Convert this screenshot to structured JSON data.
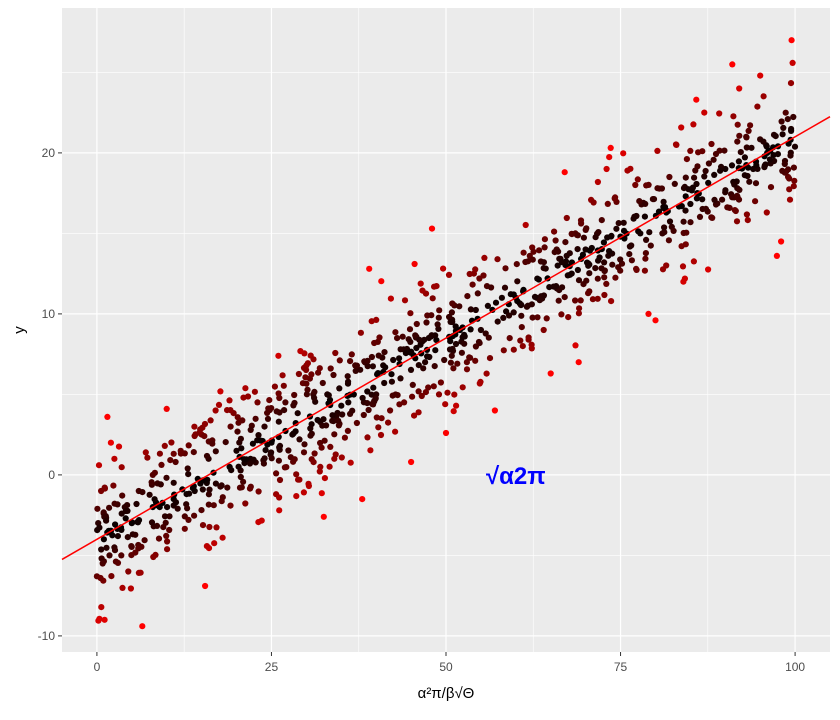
{
  "chart_data": {
    "type": "scatter",
    "title": "",
    "xlabel": "α²π/β√Θ",
    "ylabel": "y",
    "xlim": [
      -5,
      105
    ],
    "ylim": [
      -11,
      29
    ],
    "x_ticks": [
      0,
      25,
      50,
      75,
      100
    ],
    "x_tick_labels": [
      "0",
      "25",
      "50",
      "75",
      "100"
    ],
    "y_ticks": [
      -10,
      0,
      10,
      20
    ],
    "y_tick_labels": [
      "-10",
      "0",
      "10",
      "20"
    ],
    "grid": true,
    "background_color": "#ebebeb",
    "grid_color": "#ffffff",
    "point_color_scale": [
      "#000000",
      "#ff0000"
    ],
    "point_color_meaning": "absolute residual from fitted line (darker = closer)",
    "fit_line": {
      "intercept": -4,
      "slope": 0.25,
      "color": "#ff0000"
    },
    "annotation": {
      "text": "√α2π",
      "x": 60,
      "y": 0,
      "color": "#0000ff"
    },
    "n_points": 1000,
    "points": [
      [
        0,
        -6.3
      ],
      [
        0.3,
        0.6
      ],
      [
        0.6,
        -1
      ],
      [
        1.1,
        -9
      ],
      [
        1.5,
        3.6
      ],
      [
        2,
        2
      ],
      [
        2.5,
        1
      ],
      [
        1,
        -4
      ],
      [
        1.8,
        -5
      ],
      [
        2.5,
        -4.5
      ],
      [
        3,
        -3.8
      ],
      [
        3.5,
        -5
      ],
      [
        4,
        -2
      ],
      [
        4.5,
        -6
      ],
      [
        5,
        -3
      ],
      [
        6,
        -1
      ],
      [
        6.5,
        -9.4
      ],
      [
        7,
        1.4
      ],
      [
        8,
        0
      ],
      [
        8,
        -2
      ],
      [
        9,
        -2
      ],
      [
        10,
        4.1
      ],
      [
        11,
        -1.5
      ],
      [
        12,
        1.5
      ],
      [
        13,
        0.4
      ],
      [
        14,
        -1
      ],
      [
        15,
        2.5
      ],
      [
        15.5,
        -6.9
      ],
      [
        16,
        1
      ],
      [
        17,
        4
      ],
      [
        18,
        -3.9
      ],
      [
        19,
        0.5
      ],
      [
        20,
        1.5
      ],
      [
        21,
        4.8
      ],
      [
        22,
        1
      ],
      [
        23,
        4.5
      ],
      [
        24,
        3
      ],
      [
        25,
        2
      ],
      [
        26,
        7.4
      ],
      [
        27,
        4.5
      ],
      [
        28,
        2.5
      ],
      [
        29,
        -0.3
      ],
      [
        30,
        6.8
      ],
      [
        31,
        5
      ],
      [
        32,
        0.5
      ],
      [
        32.5,
        -2.6
      ],
      [
        33,
        5
      ],
      [
        34,
        1
      ],
      [
        35,
        4.3
      ],
      [
        36,
        4.5
      ],
      [
        37,
        6.8
      ],
      [
        38,
        -1.5
      ],
      [
        39,
        12.8
      ],
      [
        40,
        5
      ],
      [
        41,
        6.8
      ],
      [
        42,
        4
      ],
      [
        43,
        8.5
      ],
      [
        44,
        4.5
      ],
      [
        45,
        0.8
      ],
      [
        45.5,
        13.1
      ],
      [
        47,
        7
      ],
      [
        48,
        15.3
      ],
      [
        49,
        5
      ],
      [
        50,
        2.6
      ],
      [
        51,
        7.7
      ],
      [
        52,
        9
      ],
      [
        53,
        7
      ],
      [
        54,
        12.5
      ],
      [
        55,
        9
      ],
      [
        56,
        10.5
      ],
      [
        57,
        4
      ],
      [
        58,
        11
      ],
      [
        59,
        10.6
      ],
      [
        60,
        11
      ],
      [
        61,
        8
      ],
      [
        62,
        13.6
      ],
      [
        63,
        11
      ],
      [
        64,
        9
      ],
      [
        65,
        6.3
      ],
      [
        66,
        13
      ],
      [
        67,
        18.8
      ],
      [
        68,
        12.5
      ],
      [
        69,
        7
      ],
      [
        70,
        14
      ],
      [
        72,
        13.5
      ],
      [
        73,
        19
      ],
      [
        75,
        14.8
      ],
      [
        76,
        18.9
      ],
      [
        78,
        16.8
      ],
      [
        79,
        10
      ],
      [
        80,
        9.6
      ],
      [
        81,
        15
      ],
      [
        82,
        18.5
      ],
      [
        83,
        20.5
      ],
      [
        84,
        12
      ],
      [
        86,
        17.5
      ],
      [
        87,
        22.5
      ],
      [
        88,
        16
      ],
      [
        90,
        19
      ],
      [
        91,
        25.5
      ],
      [
        92,
        24
      ],
      [
        93,
        21
      ],
      [
        94,
        19
      ],
      [
        95,
        24.8
      ],
      [
        96,
        20
      ],
      [
        97,
        19.5
      ],
      [
        98,
        14.5
      ],
      [
        99,
        18.5
      ],
      [
        99.5,
        27
      ]
    ]
  }
}
